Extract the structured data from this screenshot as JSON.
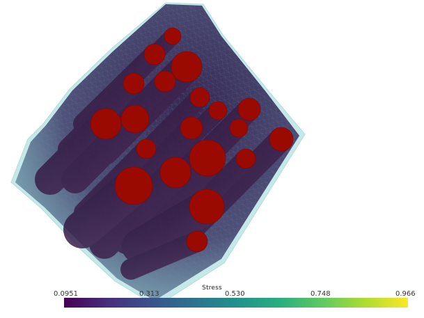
{
  "scene": {
    "render_type": "3d-mesh-with-cylindrical-inclusions",
    "mesh_color": "#b8e2e4",
    "inclusion_color": "#9b0a00",
    "tube_color": "#3a1f52"
  },
  "colorbar": {
    "title": "Stress",
    "colormap": "viridis",
    "ticks": [
      "0.0951",
      "0.313",
      "0.530",
      "0.748",
      "0.966"
    ],
    "range": [
      0.0951,
      0.966
    ]
  }
}
